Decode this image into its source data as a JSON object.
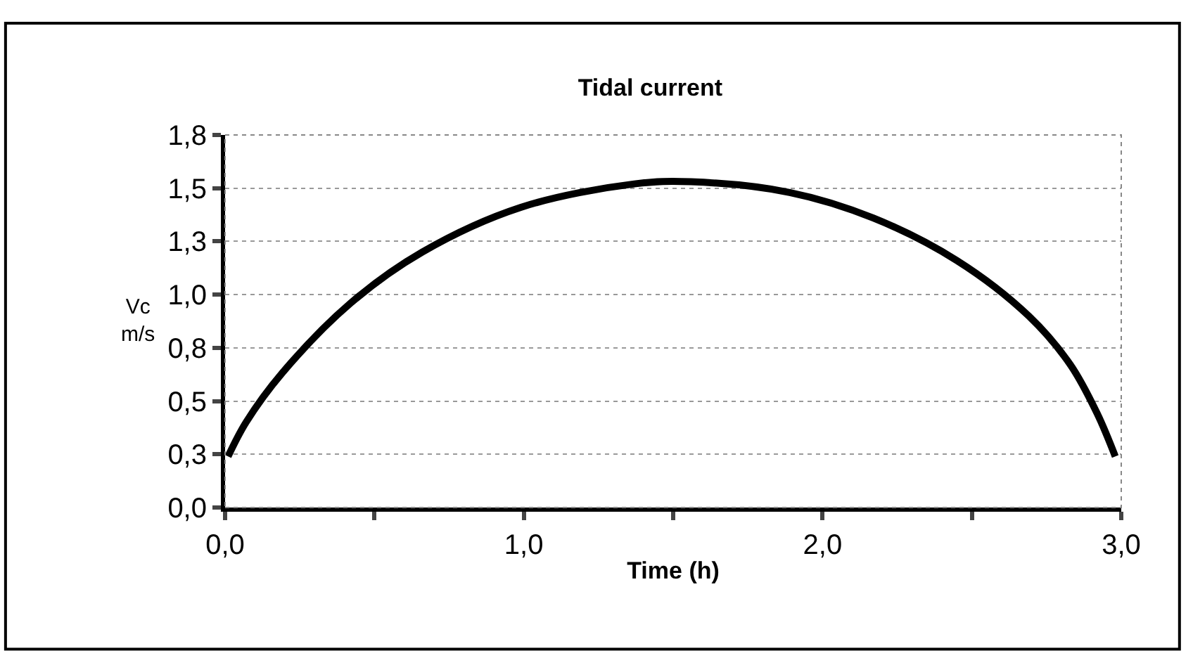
{
  "chart_data": {
    "type": "line",
    "title": "Tidal current",
    "xlabel": "Time (h)",
    "ylabel": "Vc\nm/s",
    "x": [
      0.01,
      0.07,
      0.19,
      0.42,
      0.66,
      0.99,
      1.37,
      1.56,
      1.89,
      2.17,
      2.45,
      2.69,
      2.83,
      2.92,
      2.98
    ],
    "series": [
      {
        "color": "#000000",
        "values": [
          0.24,
          0.4,
          0.63,
          0.96,
          1.2,
          1.41,
          1.52,
          1.53,
          1.48,
          1.36,
          1.16,
          0.9,
          0.67,
          0.44,
          0.24
        ]
      }
    ],
    "xlim": [
      0,
      3
    ],
    "ylim": [
      0,
      1.75
    ],
    "xticks": [
      {
        "value": 0,
        "label": "0,0"
      },
      {
        "value": 0.5,
        "label": null
      },
      {
        "value": 1,
        "label": "1,0"
      },
      {
        "value": 1.5,
        "label": null
      },
      {
        "value": 2,
        "label": "2,0"
      },
      {
        "value": 2.5,
        "label": null
      },
      {
        "value": 3,
        "label": "3,0"
      }
    ],
    "yticks": [
      {
        "value": 0,
        "label": "0,0"
      },
      {
        "value": 0.25,
        "label": "0,3"
      },
      {
        "value": 0.5,
        "label": "0,5"
      },
      {
        "value": 0.75,
        "label": "0,8"
      },
      {
        "value": 1,
        "label": "1,0"
      },
      {
        "value": 1.25,
        "label": "1,3"
      },
      {
        "value": 1.5,
        "label": "1,5"
      },
      {
        "value": 1.75,
        "label": "1,8"
      }
    ],
    "grid": "y",
    "marker": "none",
    "line_style": "solid"
  }
}
